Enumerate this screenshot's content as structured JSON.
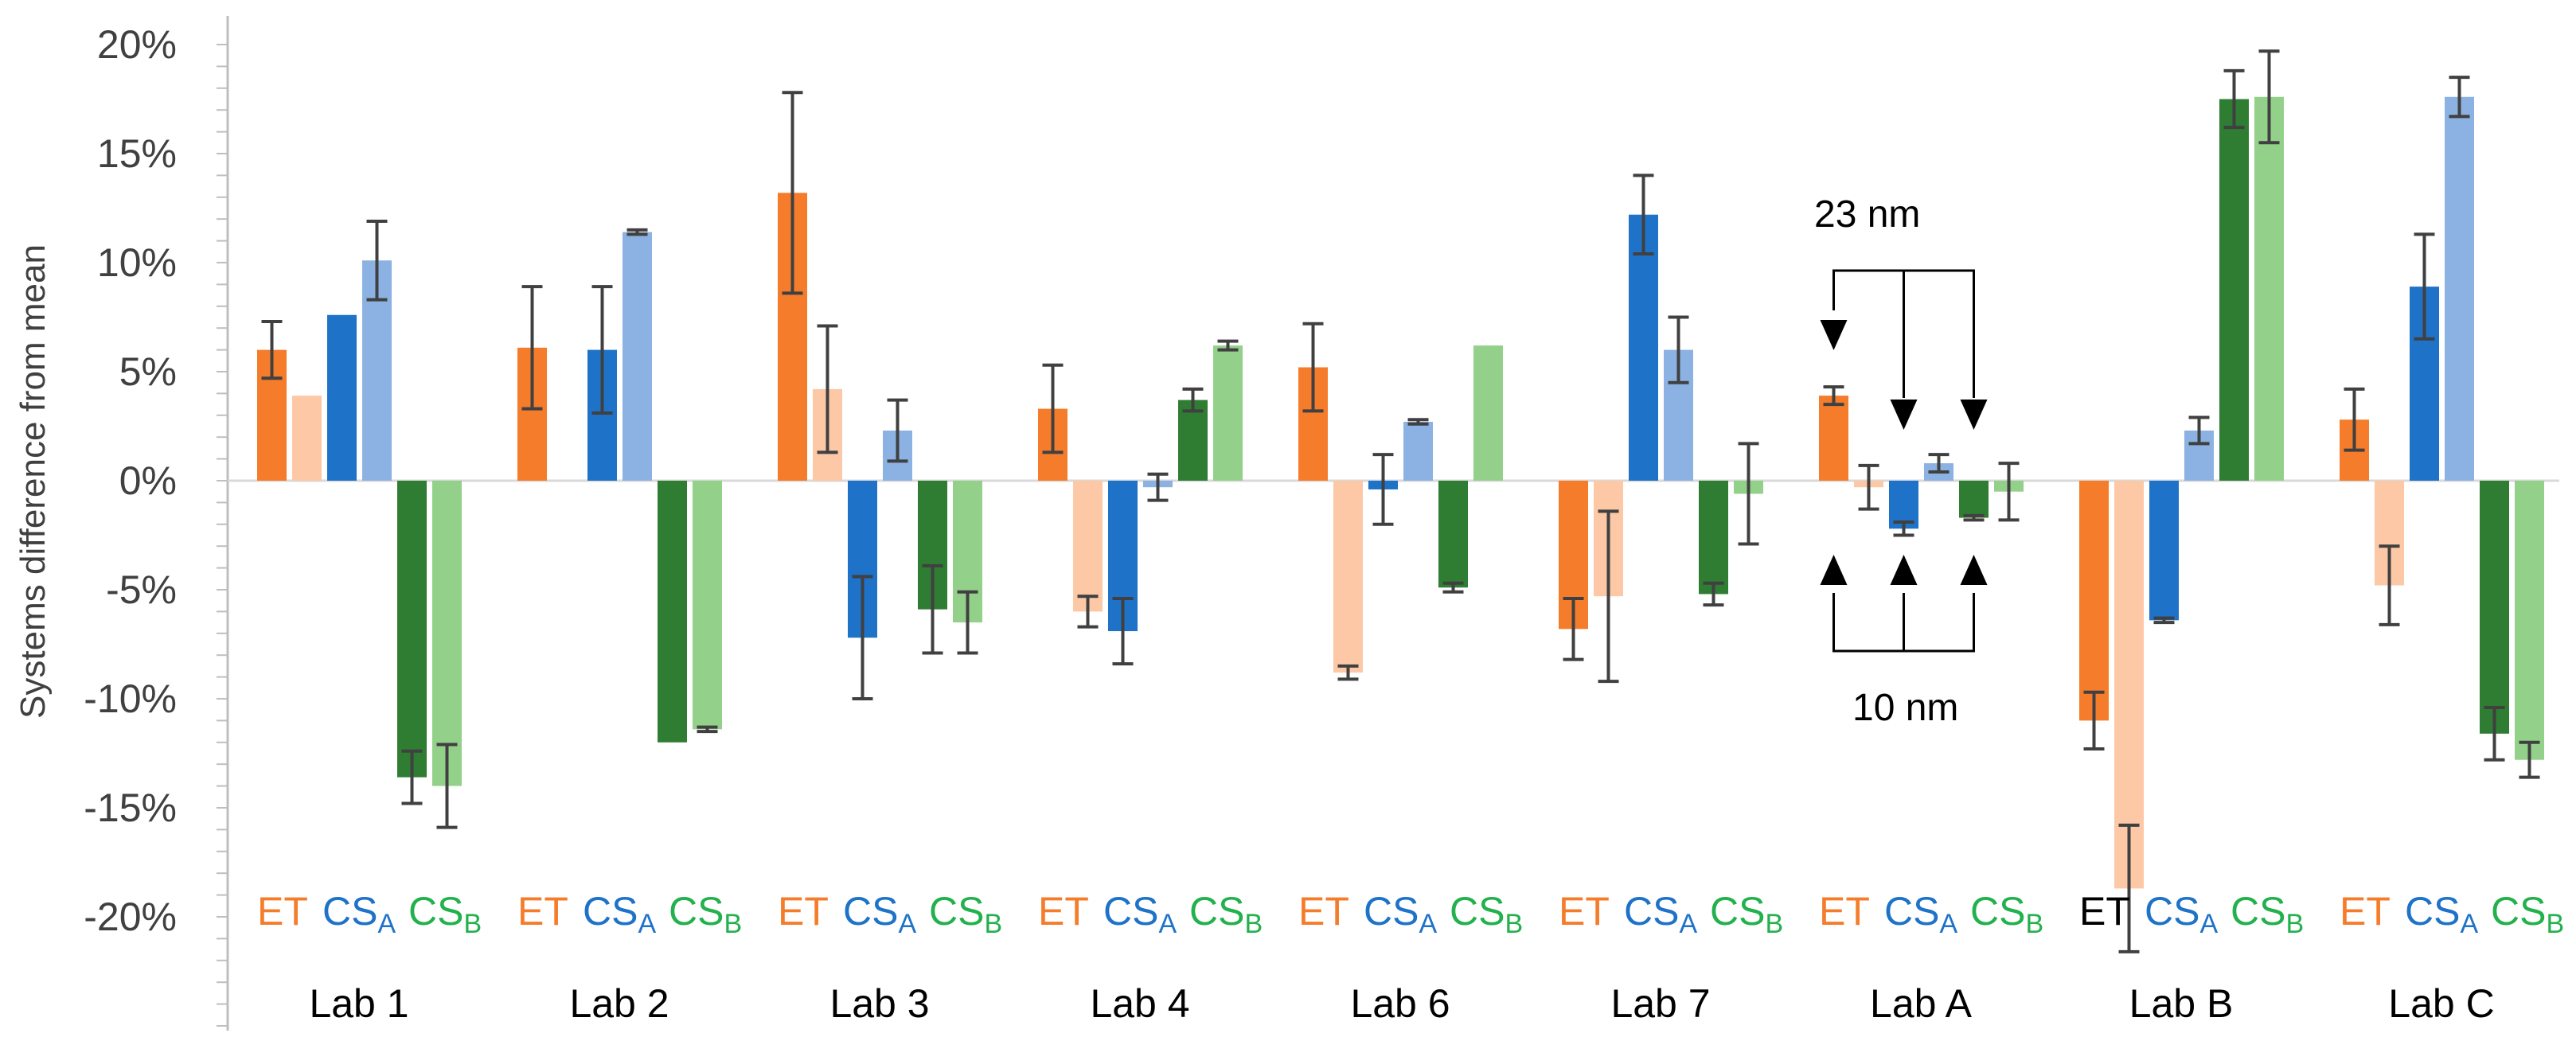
{
  "chart_data": {
    "type": "bar",
    "ylabel": "Systems difference from mean",
    "ylim": [
      -25,
      20
    ],
    "y_ticks": [
      20,
      15,
      10,
      5,
      0,
      -5,
      -10,
      -15,
      -20
    ],
    "y_tick_labels": [
      "20%",
      "15%",
      "10%",
      "5%",
      "0%",
      "-5%",
      "-10%",
      "-15%",
      "-20%"
    ],
    "categories": [
      "Lab 1",
      "Lab 2",
      "Lab 3",
      "Lab 4",
      "Lab 6",
      "Lab 7",
      "Lab A",
      "Lab B",
      "Lab C"
    ],
    "series": [
      {
        "name": "ET 23 nm",
        "color": "#f57c2b",
        "values": [
          6.0,
          6.1,
          13.2,
          3.3,
          5.2,
          -6.8,
          3.9,
          -11.0,
          2.8
        ],
        "errors": [
          1.3,
          2.8,
          4.6,
          2.0,
          2.0,
          1.4,
          0.4,
          1.3,
          1.4
        ]
      },
      {
        "name": "ET 10 nm",
        "color": "#fcc8a5",
        "values": [
          3.9,
          null,
          4.2,
          -6.0,
          -8.8,
          -5.3,
          -0.3,
          -18.7,
          -4.8
        ],
        "errors": [
          0.0,
          null,
          2.9,
          0.7,
          0.3,
          3.9,
          1.0,
          2.9,
          1.8
        ]
      },
      {
        "name": "CSA 23 nm",
        "color": "#1e72c8",
        "values": [
          7.6,
          6.0,
          -7.2,
          -6.9,
          -0.4,
          12.2,
          -2.2,
          -6.4,
          8.9
        ],
        "errors": [
          0.0,
          2.9,
          2.8,
          1.5,
          1.6,
          1.8,
          0.3,
          0.1,
          2.4
        ]
      },
      {
        "name": "CSA 10 nm",
        "color": "#8cb1e3",
        "values": [
          10.1,
          11.4,
          2.3,
          -0.3,
          2.7,
          6.0,
          0.8,
          2.3,
          17.6
        ],
        "errors": [
          1.8,
          0.1,
          1.4,
          0.6,
          0.1,
          1.5,
          0.4,
          0.6,
          0.9
        ]
      },
      {
        "name": "CSB 23 nm",
        "color": "#2e7d32",
        "values": [
          -13.6,
          -12.0,
          -5.9,
          3.7,
          -4.9,
          -5.2,
          -1.7,
          17.5,
          -11.6
        ],
        "errors": [
          1.2,
          0.0,
          2.0,
          0.5,
          0.2,
          0.5,
          0.1,
          1.3,
          1.2
        ]
      },
      {
        "name": "CSB 10 nm",
        "color": "#93d18a",
        "values": [
          -14.0,
          -11.4,
          -6.5,
          6.2,
          6.2,
          -0.6,
          -0.5,
          17.6,
          -12.8
        ],
        "errors": [
          1.9,
          0.1,
          1.4,
          0.2,
          0.0,
          2.3,
          1.3,
          2.1,
          0.8
        ]
      }
    ],
    "category_segment_labels": {
      "et": "ET",
      "cs": "CS",
      "sub_a": "A",
      "sub_b": "B"
    },
    "segment_label_colors": {
      "et": "#f57c2b",
      "et_lab_b": "#000000",
      "csa": "#1e72c8",
      "csb": "#22b14c"
    },
    "annotations": {
      "top": "23 nm",
      "bottom": "10 nm"
    }
  }
}
